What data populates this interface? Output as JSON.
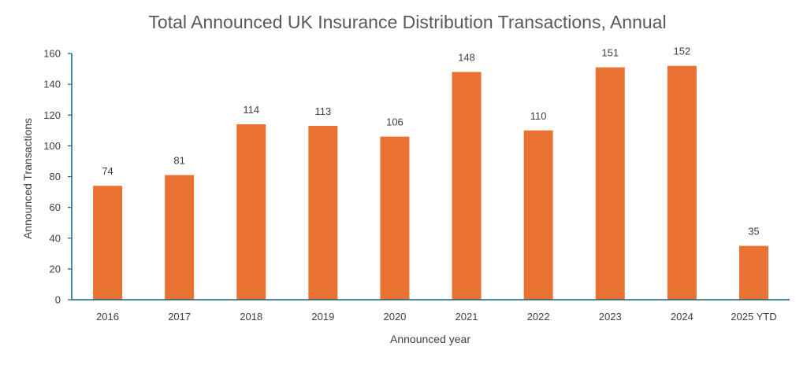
{
  "chart_data": {
    "type": "bar",
    "title": "Total Announced UK Insurance Distribution Transactions, Annual",
    "xlabel": "Announced year",
    "ylabel": "Announced Transactions",
    "categories": [
      "2016",
      "2017",
      "2018",
      "2019",
      "2020",
      "2021",
      "2022",
      "2023",
      "2024",
      "2025 YTD"
    ],
    "values": [
      74,
      81,
      114,
      113,
      106,
      148,
      110,
      151,
      152,
      35
    ],
    "data_labels": [
      "74",
      "81",
      "114",
      "113",
      "106",
      "148",
      "110",
      "151",
      "152",
      "35"
    ],
    "ylim": [
      0,
      160
    ],
    "yticks": [
      0,
      20,
      40,
      60,
      80,
      100,
      120,
      140,
      160
    ],
    "ytick_labels": [
      "0",
      "20",
      "40",
      "60",
      "80",
      "100",
      "120",
      "140",
      "160"
    ],
    "grid": false,
    "legend": "none",
    "colors": {
      "bar": "#E97132",
      "axis": "#156082",
      "text": "#404040",
      "title": "#595959"
    }
  }
}
